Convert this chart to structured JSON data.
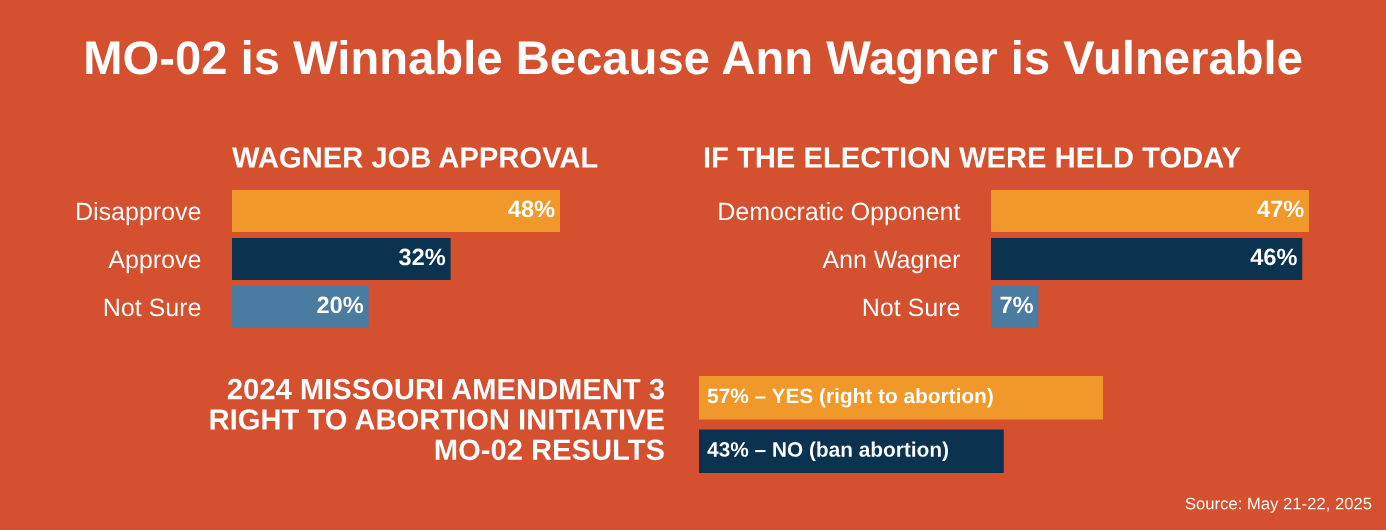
{
  "chart_data": [
    {
      "type": "bar",
      "orientation": "horizontal",
      "title": "MO-02 is Winnable Because Ann Wagner is Vulnerable",
      "subtitle": "WAGNER JOB APPROVAL",
      "categories": [
        "Disapprove",
        "Approve",
        "Not Sure"
      ],
      "values": [
        48,
        32,
        20
      ],
      "colors": [
        "#f0992a",
        "#0b3350",
        "#4a7ba0"
      ],
      "value_labels": [
        "48%",
        "32%",
        "20%"
      ]
    },
    {
      "type": "bar",
      "orientation": "horizontal",
      "subtitle": "IF THE ELECTION WERE HELD TODAY",
      "categories": [
        "Democratic Opponent",
        "Ann Wagner",
        "Not Sure"
      ],
      "values": [
        47,
        46,
        7
      ],
      "colors": [
        "#f0992a",
        "#0b3350",
        "#4a7ba0"
      ],
      "value_labels": [
        "47%",
        "46%",
        "7%"
      ]
    },
    {
      "type": "bar",
      "orientation": "horizontal",
      "subtitle": "2024 MISSOURI AMENDMENT 3\nRIGHT TO ABORTION INITIATIVE\nMO-02 RESULTS",
      "categories": [
        null,
        null
      ],
      "values": [
        57,
        43
      ],
      "colors": [
        "#f0992a",
        "#0b3350"
      ],
      "value_labels": [
        "57% – YES (right to abortion)",
        "43% – NO (ban abortion)"
      ],
      "annotations": [
        "Source: May 21-22, 2025"
      ]
    }
  ]
}
